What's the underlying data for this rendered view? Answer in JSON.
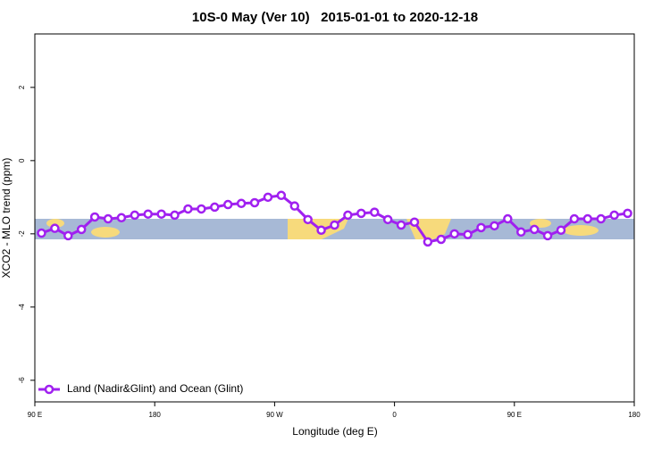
{
  "chart_data": {
    "type": "line",
    "title": "10S-0 May (Ver 10)   2015-01-01 to 2020-12-18",
    "x_label": "Longitude (deg E)",
    "y_label": "XCO2 - MLO trend (ppm)",
    "x": [
      95,
      105,
      115,
      125,
      135,
      145,
      155,
      165,
      175,
      185,
      195,
      205,
      215,
      225,
      235,
      245,
      255,
      265,
      275,
      285,
      295,
      305,
      315,
      325,
      335,
      345,
      355,
      365,
      375,
      385,
      395,
      405,
      415,
      425,
      435,
      445,
      455,
      465,
      475,
      485,
      495,
      505,
      515,
      525,
      535
    ],
    "series": [
      {
        "name": "Land (Nadir&Glint) and Ocean (Glint)",
        "color": "#a020f0",
        "values": [
          -1.98,
          -1.85,
          -2.05,
          -1.88,
          -1.54,
          -1.59,
          -1.56,
          -1.49,
          -1.46,
          -1.46,
          -1.49,
          -1.32,
          -1.32,
          -1.27,
          -1.2,
          -1.17,
          -1.15,
          -1.0,
          -0.95,
          -1.24,
          -1.61,
          -1.9,
          -1.76,
          -1.49,
          -1.44,
          -1.41,
          -1.61,
          -1.76,
          -1.68,
          -2.22,
          -2.15,
          -2.0,
          -2.02,
          -1.83,
          -1.78,
          -1.59,
          -1.95,
          -1.88,
          -2.05,
          -1.9,
          -1.59,
          -1.59,
          -1.59,
          -1.49,
          -1.44
        ]
      }
    ],
    "xlim": [
      90,
      540
    ],
    "xticks": [
      {
        "value": 90,
        "label": "90 E"
      },
      {
        "value": 180,
        "label": "180"
      },
      {
        "value": 270,
        "label": "90 W"
      },
      {
        "value": 360,
        "label": "0"
      },
      {
        "value": 450,
        "label": "90 E"
      },
      {
        "value": 540,
        "label": "180"
      }
    ],
    "ylim": [
      -6.59,
      3.46
    ],
    "yticks": [
      -6,
      -4,
      -2,
      0,
      2
    ],
    "legend": "bottom-left"
  }
}
